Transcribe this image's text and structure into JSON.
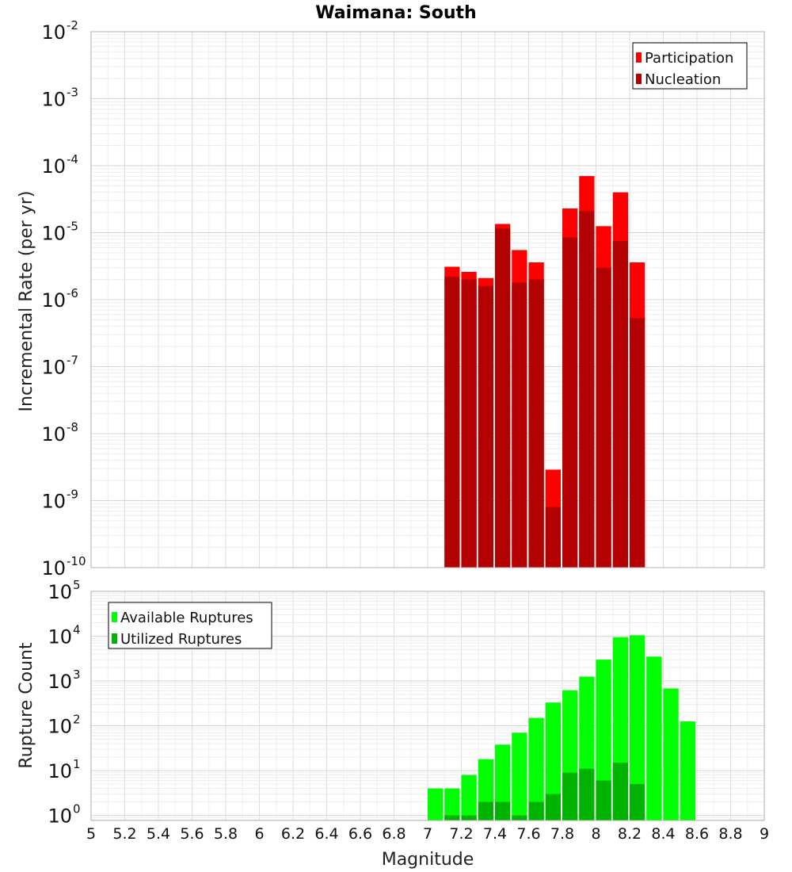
{
  "chart_data": [
    {
      "type": "bar",
      "title": "Waimana: South",
      "xlabel": "Magnitude",
      "ylabel": "Incremental Rate (per yr)",
      "yscale": "log",
      "ylim": [
        1e-10,
        0.01
      ],
      "xlim": [
        5,
        9
      ],
      "bar_width": 0.1,
      "legend_position": "top-right",
      "ytick_exponents": [
        "-10",
        "-9",
        "-8",
        "-7",
        "-6",
        "-5",
        "-4",
        "-3",
        "-2"
      ],
      "ytick_base": "10",
      "series": [
        {
          "name": "Participation",
          "color": "#ff0000",
          "x": [
            7.15,
            7.25,
            7.35,
            7.45,
            7.55,
            7.65,
            7.75,
            7.85,
            7.95,
            8.05,
            8.15,
            8.25
          ],
          "values": [
            3.1e-06,
            2.6e-06,
            2.1e-06,
            1.35e-05,
            5.5e-06,
            3.6e-06,
            2.9e-09,
            2.3e-05,
            7e-05,
            1.25e-05,
            4e-05,
            3.6e-06
          ]
        },
        {
          "name": "Nucleation",
          "color": "#b30000",
          "x": [
            7.15,
            7.25,
            7.35,
            7.45,
            7.55,
            7.65,
            7.75,
            7.85,
            7.95,
            8.05,
            8.15,
            8.25
          ],
          "values": [
            2.2e-06,
            2e-06,
            1.6e-06,
            1.15e-05,
            1.8e-06,
            2e-06,
            8e-10,
            8.5e-06,
            2.1e-05,
            3e-06,
            7.5e-06,
            5.3e-07
          ]
        }
      ]
    },
    {
      "type": "bar",
      "title": "",
      "xlabel": "Magnitude",
      "ylabel": "Rupture Count",
      "yscale": "log",
      "ylim": [
        0.77,
        100000
      ],
      "xlim": [
        5,
        9
      ],
      "bar_width": 0.1,
      "legend_position": "top-left",
      "ytick_exponents": [
        "0",
        "1",
        "2",
        "3",
        "4",
        "5"
      ],
      "ytick_base": "10",
      "xtick_labels": [
        "5",
        "5.2",
        "5.4",
        "5.6",
        "5.8",
        "6",
        "6.2",
        "6.4",
        "6.6",
        "6.8",
        "7",
        "7.2",
        "7.4",
        "7.6",
        "7.8",
        "8",
        "8.2",
        "8.4",
        "8.6",
        "8.8",
        "9"
      ],
      "series": [
        {
          "name": "Available Ruptures",
          "color": "#00ff00",
          "x": [
            7.05,
            7.15,
            7.25,
            7.35,
            7.45,
            7.55,
            7.65,
            7.75,
            7.85,
            7.95,
            8.05,
            8.15,
            8.25,
            8.35,
            8.45,
            8.55
          ],
          "values": [
            4,
            4,
            8,
            18,
            38,
            70,
            150,
            330,
            620,
            1250,
            3000,
            9500,
            10500,
            3500,
            680,
            125
          ]
        },
        {
          "name": "Utilized Ruptures",
          "color": "#00b300",
          "x": [
            7.05,
            7.15,
            7.25,
            7.35,
            7.45,
            7.55,
            7.65,
            7.75,
            7.85,
            7.95,
            8.05,
            8.15,
            8.25,
            8.35,
            8.45,
            8.55
          ],
          "values": [
            0,
            1,
            1,
            2,
            2,
            1,
            2,
            3,
            9,
            11,
            6,
            15,
            5,
            0,
            0,
            0
          ]
        }
      ]
    }
  ]
}
